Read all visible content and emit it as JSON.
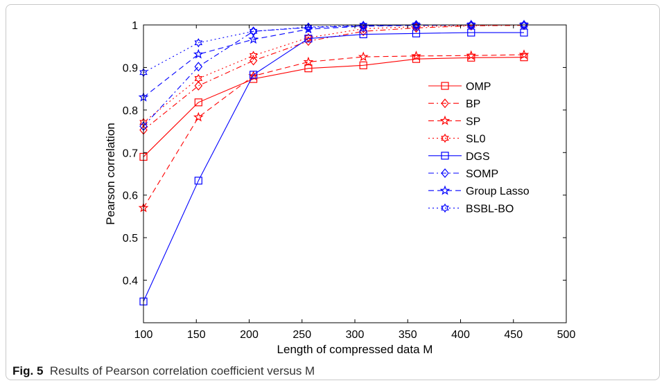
{
  "caption": {
    "label": "Fig. 5",
    "text": "Results of Pearson correlation coefficient versus M"
  },
  "colors": {
    "red": "#ff0000",
    "blue": "#0000ff"
  },
  "chart_data": {
    "type": "line",
    "title": "",
    "xlabel": "Length of compressed data M",
    "ylabel": "Pearson correlation",
    "xlim": [
      100,
      500
    ],
    "ylim": [
      0.3,
      1.0
    ],
    "xticks": [
      "100",
      "150",
      "200",
      "250",
      "300",
      "350",
      "400",
      "450",
      "500"
    ],
    "yticks": [
      "1",
      "0.9",
      "0.8",
      "0.7",
      "0.6",
      "0.5",
      "0.4"
    ],
    "grid": false,
    "legend_position": "right",
    "x": [
      100,
      152,
      204,
      256,
      308,
      358,
      410,
      460
    ],
    "series": [
      {
        "name": "OMP",
        "color": "#ff0000",
        "dash": "solid",
        "marker": "square",
        "values": [
          0.69,
          0.818,
          0.873,
          0.898,
          0.905,
          0.92,
          0.923,
          0.924
        ]
      },
      {
        "name": "BP",
        "color": "#ff0000",
        "dash": "dashdot",
        "marker": "diamond",
        "values": [
          0.753,
          0.857,
          0.916,
          0.962,
          0.985,
          0.993,
          0.998,
          0.999
        ]
      },
      {
        "name": "SP",
        "color": "#ff0000",
        "dash": "dashed",
        "marker": "star",
        "values": [
          0.57,
          0.783,
          0.88,
          0.913,
          0.925,
          0.927,
          0.928,
          0.93
        ]
      },
      {
        "name": "SL0",
        "color": "#ff0000",
        "dash": "dotted",
        "marker": "hexagram",
        "values": [
          0.771,
          0.874,
          0.928,
          0.97,
          0.991,
          0.996,
          0.999,
          1.0
        ]
      },
      {
        "name": "DGS",
        "color": "#0000ff",
        "dash": "solid",
        "marker": "square",
        "values": [
          0.35,
          0.634,
          0.883,
          0.968,
          0.978,
          0.98,
          0.982,
          0.982
        ]
      },
      {
        "name": "SOMP",
        "color": "#0000ff",
        "dash": "dashdot",
        "marker": "diamond",
        "values": [
          0.762,
          0.902,
          0.985,
          0.994,
          0.998,
          1.0,
          1.0,
          1.0
        ]
      },
      {
        "name": "Group Lasso",
        "color": "#0000ff",
        "dash": "dashed",
        "marker": "star",
        "values": [
          0.83,
          0.931,
          0.966,
          0.99,
          0.997,
          0.999,
          1.0,
          1.0
        ]
      },
      {
        "name": "BSBL-BO",
        "color": "#0000ff",
        "dash": "dotted",
        "marker": "hexagram",
        "values": [
          0.888,
          0.958,
          0.985,
          0.995,
          0.999,
          1.0,
          1.0,
          1.0
        ]
      }
    ]
  }
}
